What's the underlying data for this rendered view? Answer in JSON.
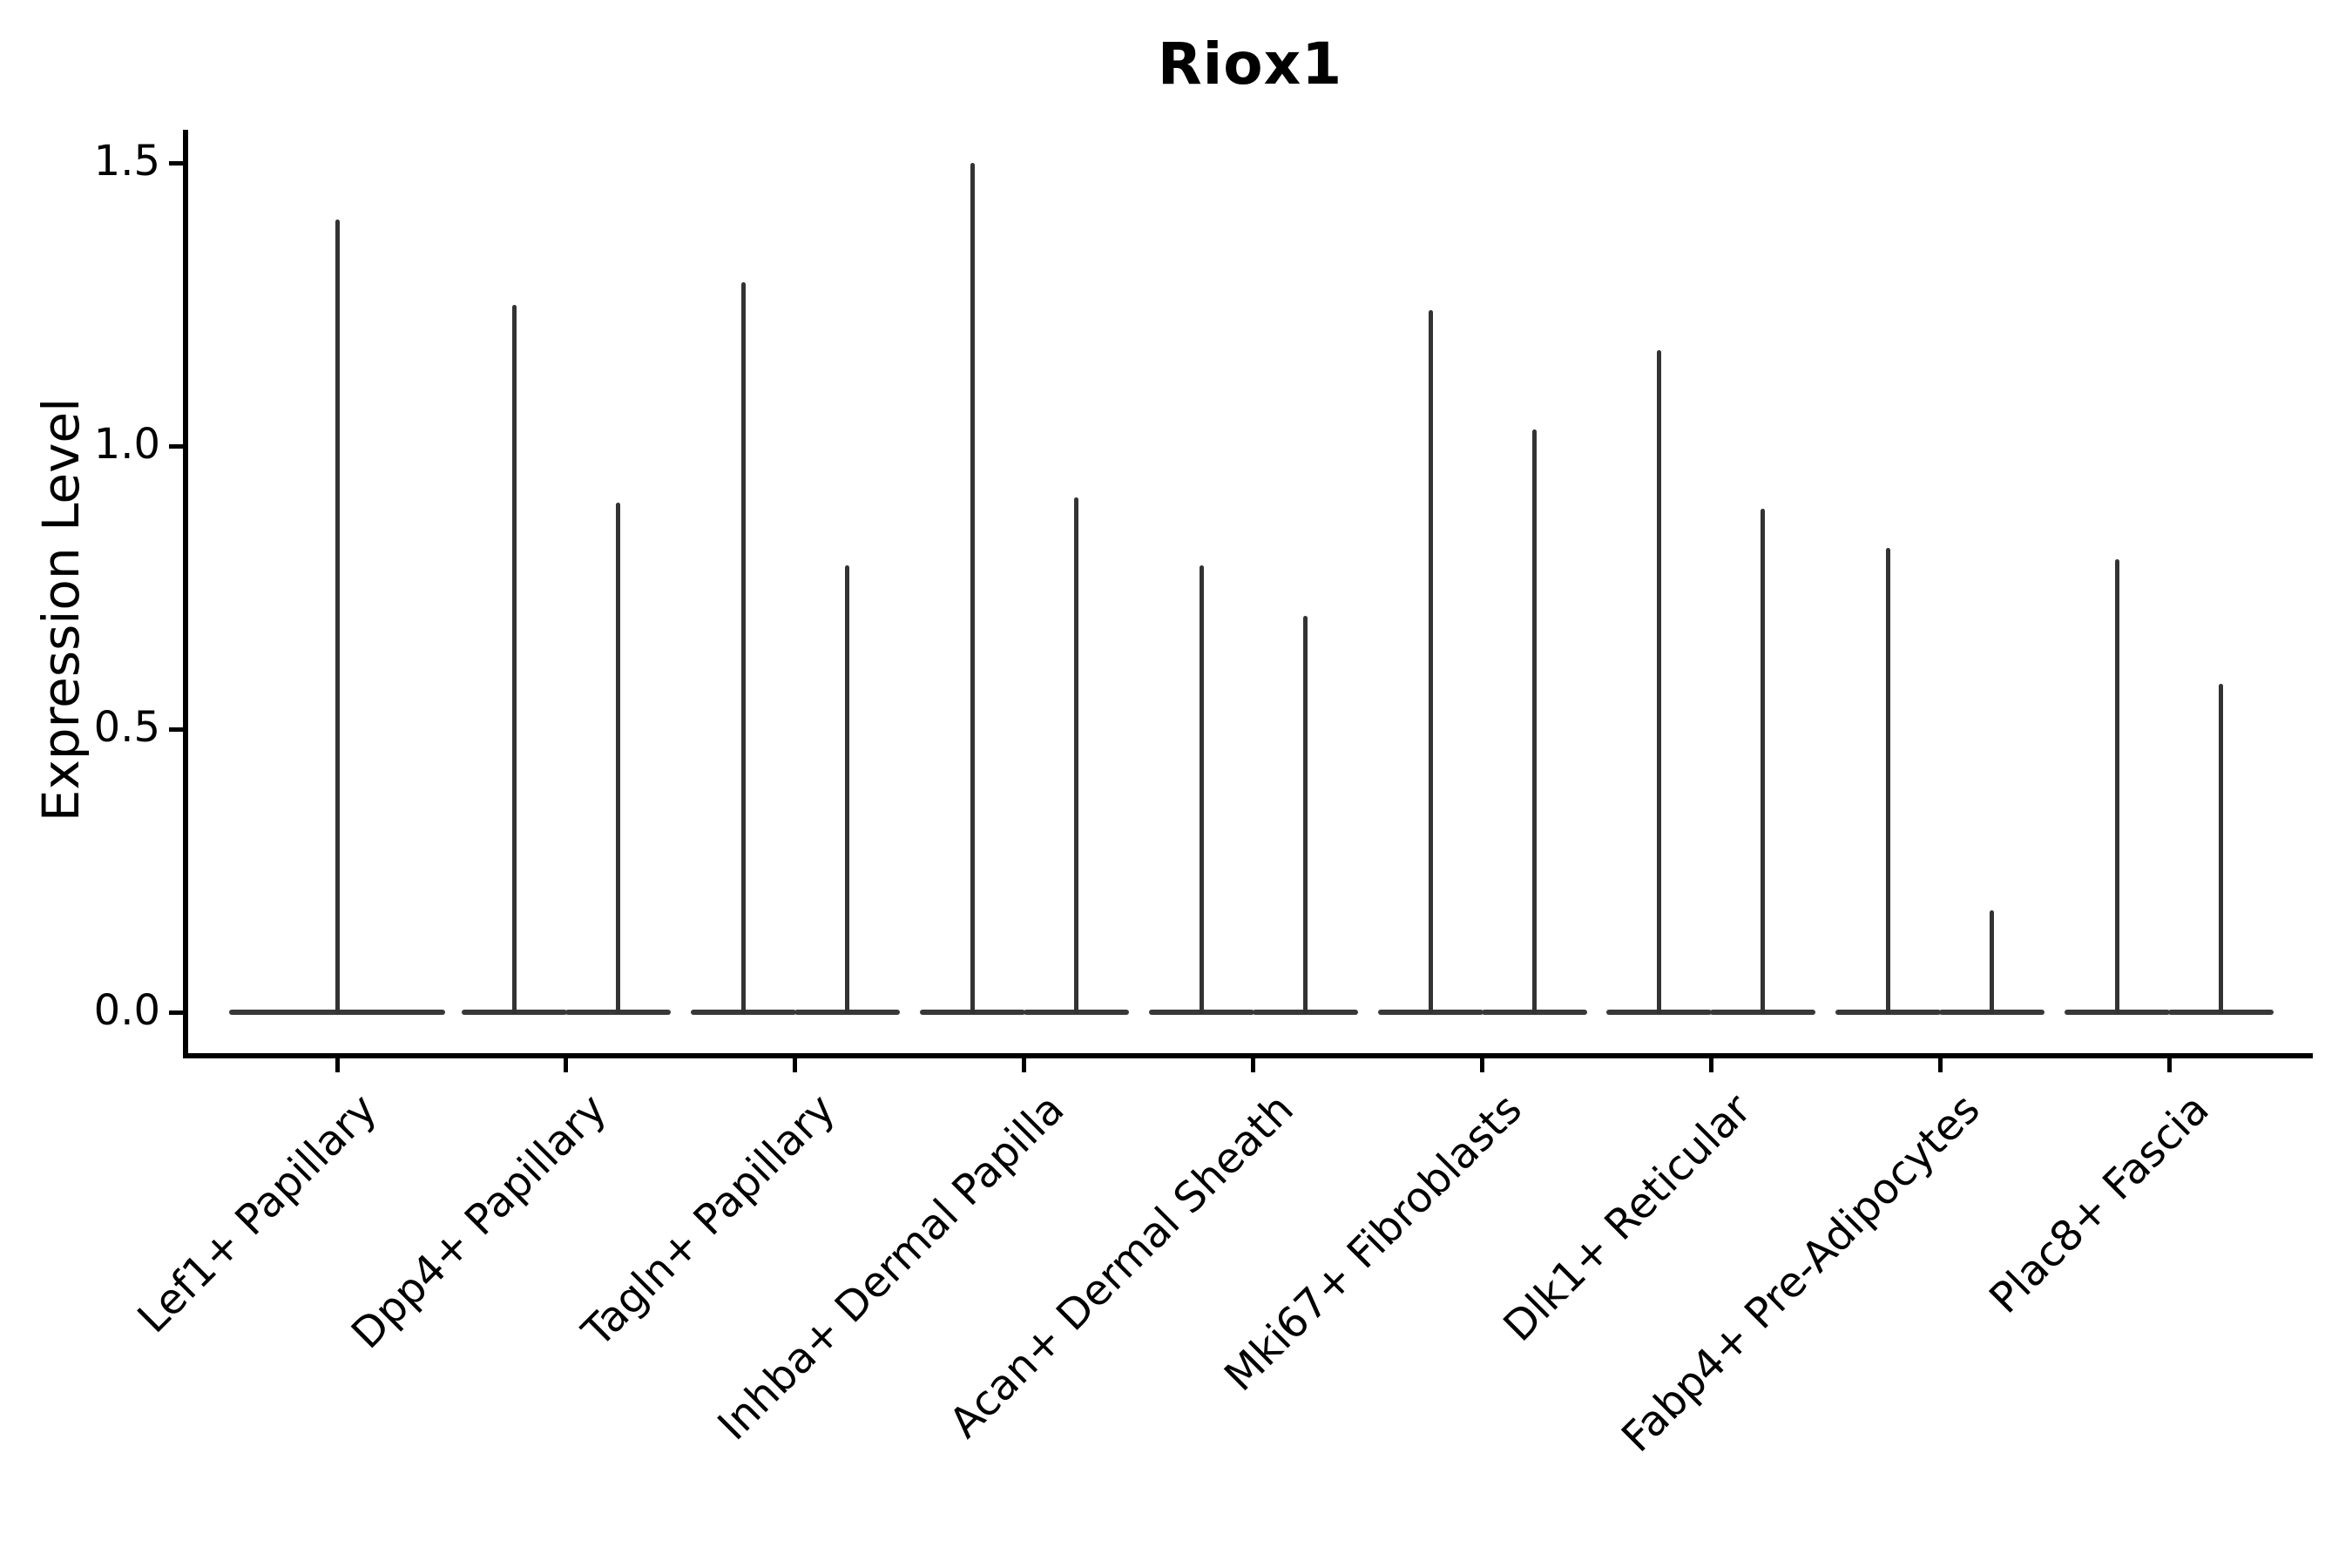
{
  "title": "Riox1",
  "axes": {
    "y_label": "Expression Level",
    "y_ticks": [
      {
        "label": "1.5",
        "value": 1.5
      },
      {
        "label": "1.0",
        "value": 1.0
      },
      {
        "label": "0.5",
        "value": 0.5
      },
      {
        "label": "0.0",
        "value": 0.0
      }
    ]
  },
  "colors": {
    "violin_stroke": "#333333",
    "axis": "#000000",
    "text": "#000000",
    "background": "#ffffff"
  },
  "chart_data": {
    "type": "violin",
    "title": "Riox1",
    "xlabel": "",
    "ylabel": "Expression Level",
    "ylim": [
      -0.07,
      1.56
    ],
    "y_ticks": [
      0.0,
      0.5,
      1.0,
      1.5
    ],
    "grid": false,
    "legend": "none",
    "baseline_value": 0,
    "distribution_note": "Each violin is a needle shape: nearly all density is a flat lobe at expression 0 with a thin spike reaching the maximum expression value. Categories 2-9 contain two side-by-side violins (unlabeled split); category 1 contains a single full-width violin.",
    "categories": [
      "Lef1+ Papillary",
      "Dpp4+ Papillary",
      "Tagln+ Papillary",
      "Inhba+ Dermal Papilla",
      "Acan+ Dermal Sheath",
      "Mki67+ Fibroblasts",
      "Dlk1+ Reticular",
      "Fabp4+ Pre-Adipocytes",
      "Plac8+ Fascia"
    ],
    "groups": [
      {
        "category": "Lef1+ Papillary",
        "maxima": [
          1.4
        ]
      },
      {
        "category": "Dpp4+ Papillary",
        "maxima": [
          1.25,
          0.9
        ]
      },
      {
        "category": "Tagln+ Papillary",
        "maxima": [
          1.29,
          0.79
        ]
      },
      {
        "category": "Inhba+ Dermal Papilla",
        "maxima": [
          1.5,
          0.91
        ]
      },
      {
        "category": "Acan+ Dermal Sheath",
        "maxima": [
          0.79,
          0.7
        ]
      },
      {
        "category": "Mki67+ Fibroblasts",
        "maxima": [
          1.24,
          1.03
        ]
      },
      {
        "category": "Dlk1+ Reticular",
        "maxima": [
          1.17,
          0.89
        ]
      },
      {
        "category": "Fabp4+ Pre-Adipocytes",
        "maxima": [
          0.82,
          0.18
        ]
      },
      {
        "category": "Plac8+ Fascia",
        "maxima": [
          0.8,
          0.58
        ]
      }
    ]
  }
}
